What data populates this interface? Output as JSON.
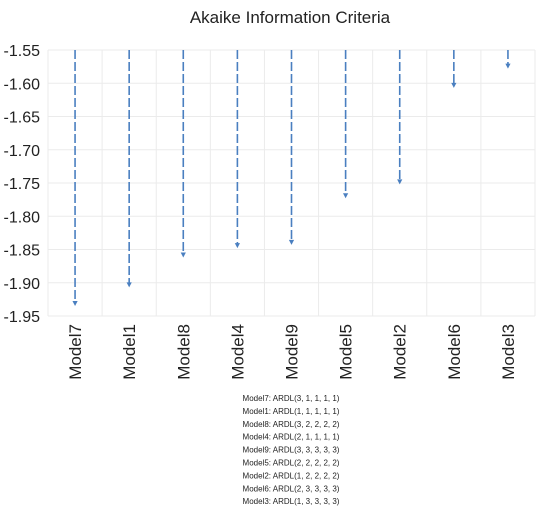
{
  "chart_data": {
    "type": "bar",
    "title": "Akaike Information Criteria",
    "categories": [
      "Model7",
      "Model1",
      "Model8",
      "Model4",
      "Model9",
      "Model5",
      "Model2",
      "Model6",
      "Model3"
    ],
    "values": [
      -1.935,
      -1.907,
      -1.862,
      -1.848,
      -1.843,
      -1.773,
      -1.752,
      -1.607,
      -1.578
    ],
    "ylim": [
      -1.95,
      -1.55
    ],
    "y_ticks": [
      "-1.55",
      "-1.60",
      "-1.65",
      "-1.70",
      "-1.75",
      "-1.80",
      "-1.85",
      "-1.90",
      "-1.95"
    ],
    "grid": true,
    "bar_style": "dashed-arrow",
    "color": "#4a7fc0",
    "legend_lines": [
      "Model7: ARDL(3, 1, 1, 1, 1)",
      "Model1: ARDL(1, 1, 1, 1, 1)",
      "Model8: ARDL(3, 2, 2, 2, 2)",
      "Model4: ARDL(2, 1, 1, 1, 1)",
      "Model9: ARDL(3, 3, 3, 3, 3)",
      "Model5: ARDL(2, 2, 2, 2, 2)",
      "Model2: ARDL(1, 2, 2, 2, 2)",
      "Model6: ARDL(2, 3, 3, 3, 3)",
      "Model3: ARDL(1, 3, 3, 3, 3)"
    ]
  }
}
